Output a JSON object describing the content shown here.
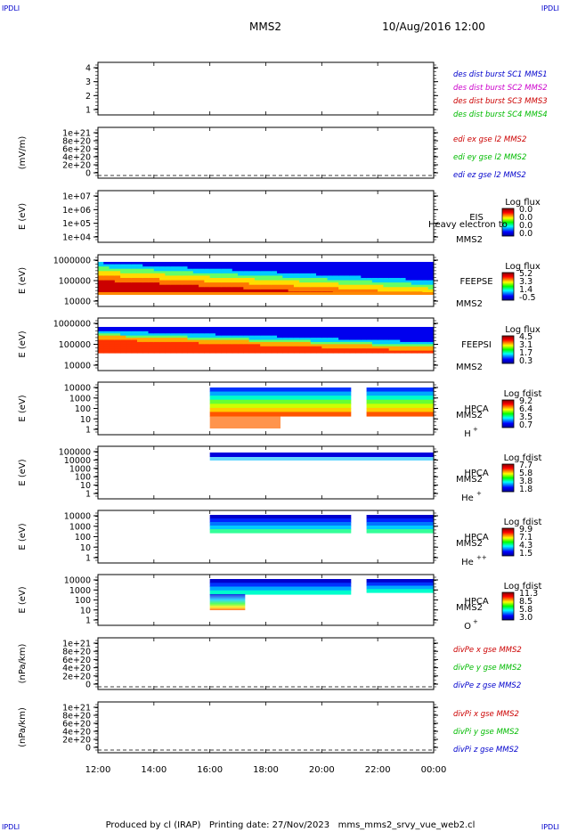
{
  "header": {
    "corner_left": "IPDLI",
    "corner_right": "IPDLI",
    "title": "MMS2",
    "datetime": "10/Aug/2016 12:00"
  },
  "footer": {
    "corner_left": "IPDLI",
    "corner_right": "IPDLI",
    "text": "Produced by cl (IRAP)   Printing date: 27/Nov/2023   mms_mms2_srvy_vue_web2.cl"
  },
  "time_axis": {
    "ticks": [
      "12:00",
      "14:00",
      "16:00",
      "18:00",
      "20:00",
      "22:00",
      "00:00"
    ]
  },
  "colors": {
    "blue": "#0000cc",
    "red": "#cc0000",
    "green": "#00bb00",
    "magenta": "#cc00cc"
  },
  "chart_data": [
    {
      "id": "burst",
      "type": "line",
      "ylabel": "",
      "yticks": [
        "4",
        "3",
        "2",
        "1"
      ],
      "legend": [
        {
          "text": "des dist burst SC1 MMS1",
          "color": "#0000cc"
        },
        {
          "text": "des dist burst SC2 MMS2",
          "color": "#cc00cc"
        },
        {
          "text": "des dist burst SC3 MMS3",
          "color": "#cc0000"
        },
        {
          "text": "des dist burst SC4 MMS4",
          "color": "#00bb00"
        }
      ]
    },
    {
      "id": "edi",
      "type": "line",
      "ylabel": "(mV/m)",
      "yticks": [
        "1e+21",
        "8e+20",
        "6e+20",
        "4e+20",
        "2e+20",
        "0"
      ],
      "legend": [
        {
          "text": "edi ex gse l2 MMS2",
          "color": "#cc0000"
        },
        {
          "text": "edi ey gse l2 MMS2",
          "color": "#00bb00"
        },
        {
          "text": "edi ez gse l2 MMS2",
          "color": "#0000cc"
        }
      ]
    },
    {
      "id": "eis",
      "type": "heatmap",
      "ylabel": "E (eV)",
      "yticks": [
        "1e+07",
        "1e+06",
        "1e+05",
        "1e+04"
      ],
      "inst": [
        "EIS",
        "MMS2"
      ],
      "overlay": "Heavy electron to",
      "colorbar": {
        "title": "Log flux",
        "ticks": [
          "0.0",
          "0.0",
          "0.0",
          "0.0"
        ]
      }
    },
    {
      "id": "feepse",
      "type": "heatmap",
      "ylabel": "E (eV)",
      "yticks": [
        "1000000",
        "100000",
        "10000"
      ],
      "inst": [
        "FEEPSE",
        "MMS2"
      ],
      "colorbar": {
        "title": "Log flux",
        "ticks": [
          "5.2",
          "3.3",
          "1.4",
          "-0.5"
        ]
      }
    },
    {
      "id": "feepsi",
      "type": "heatmap",
      "ylabel": "E (eV)",
      "yticks": [
        "1000000",
        "100000",
        "10000"
      ],
      "inst": [
        "FEEPSI",
        "MMS2"
      ],
      "colorbar": {
        "title": "Log flux",
        "ticks": [
          "4.5",
          "3.1",
          "1.7",
          "0.3"
        ]
      }
    },
    {
      "id": "hpca_h",
      "type": "heatmap",
      "ylabel": "E (eV)",
      "yticks": [
        "10000",
        "1000",
        "100",
        "10",
        "1"
      ],
      "inst": [
        "HPCA",
        "MMS2"
      ],
      "species": "H",
      "species_sup": "+",
      "colorbar": {
        "title": "Log fdist",
        "ticks": [
          "9.2",
          "6.4",
          "3.5",
          "0.7"
        ]
      }
    },
    {
      "id": "hpca_he",
      "type": "heatmap",
      "ylabel": "E (eV)",
      "yticks": [
        "100000",
        "10000",
        "1000",
        "100",
        "10",
        "1"
      ],
      "inst": [
        "HPCA",
        "MMS2"
      ],
      "species": "He",
      "species_sup": "+",
      "colorbar": {
        "title": "Log fdist",
        "ticks": [
          "7.7",
          "5.8",
          "3.8",
          "1.8"
        ]
      }
    },
    {
      "id": "hpca_hepp",
      "type": "heatmap",
      "ylabel": "E (eV)",
      "yticks": [
        "10000",
        "1000",
        "100",
        "10",
        "1"
      ],
      "inst": [
        "HPCA",
        "MMS2"
      ],
      "species": "He",
      "species_sup": "++",
      "colorbar": {
        "title": "Log fdist",
        "ticks": [
          "9.9",
          "7.1",
          "4.3",
          "1.5"
        ]
      }
    },
    {
      "id": "hpca_o",
      "type": "heatmap",
      "ylabel": "E (eV)",
      "yticks": [
        "10000",
        "1000",
        "100",
        "10",
        "1"
      ],
      "inst": [
        "HPCA",
        "MMS2"
      ],
      "species": "O",
      "species_sup": "+",
      "colorbar": {
        "title": "Log fdist",
        "ticks": [
          "11.3",
          "8.5",
          "5.8",
          "3.0"
        ]
      }
    },
    {
      "id": "divpe",
      "type": "line",
      "ylabel": "(nPa/km)",
      "yticks": [
        "1e+21",
        "8e+20",
        "6e+20",
        "4e+20",
        "2e+20",
        "0"
      ],
      "legend": [
        {
          "text": "divPe x gse MMS2",
          "color": "#cc0000"
        },
        {
          "text": "divPe y gse MMS2",
          "color": "#00bb00"
        },
        {
          "text": "divPe z gse MMS2",
          "color": "#0000cc"
        }
      ]
    },
    {
      "id": "divpi",
      "type": "line",
      "ylabel": "(nPa/km)",
      "yticks": [
        "1e+21",
        "8e+20",
        "6e+20",
        "4e+20",
        "2e+20",
        "0"
      ],
      "legend": [
        {
          "text": "divPi x gse MMS2",
          "color": "#cc0000"
        },
        {
          "text": "divPi y gse MMS2",
          "color": "#00bb00"
        },
        {
          "text": "divPi z gse MMS2",
          "color": "#0000cc"
        }
      ]
    }
  ]
}
